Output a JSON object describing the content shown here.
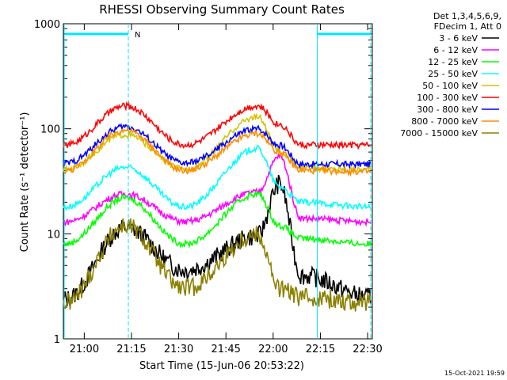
{
  "chart_data": {
    "type": "line",
    "title": "RHESSI Observing Summary Count Rates",
    "xlabel": "Start Time (15-Jun-06 20:53:22)",
    "ylabel": "Count Rate (s⁻¹ detector⁻¹)",
    "yscale": "log",
    "ylim": [
      1,
      1000
    ],
    "xlim": [
      "20:53:22",
      "22:31:30"
    ],
    "x_ticks": [
      "21:00",
      "21:15",
      "21:30",
      "21:45",
      "22:00",
      "22:15",
      "22:30"
    ],
    "y_ticks": [
      "1",
      "10",
      "100",
      "1000"
    ],
    "legend_header": [
      "Det 1,3,4,5,6,9,",
      "FDecim 1, Att 0"
    ],
    "legend_position": "right",
    "footer_date": "15-Oct-2021 19:59",
    "night_marker": "N",
    "x": [
      "20:54",
      "21:13",
      "21:32",
      "21:55",
      "22:02",
      "22:09",
      "22:31"
    ],
    "series": [
      {
        "name": "3 - 6 keV",
        "color": "#000000",
        "values": [
          2.4,
          11.5,
          4.5,
          9.5,
          30,
          4,
          2.5
        ]
      },
      {
        "name": "6 - 12 keV",
        "color": "#ff00ff",
        "values": [
          13,
          24,
          13,
          25,
          55,
          14,
          13
        ]
      },
      {
        "name": "12 - 25 keV",
        "color": "#00ff00",
        "values": [
          8,
          22,
          8,
          24,
          12,
          9,
          8
        ]
      },
      {
        "name": "25 - 50 keV",
        "color": "#00ffff",
        "values": [
          18,
          43,
          18,
          65,
          28,
          20,
          18
        ]
      },
      {
        "name": "50 - 100 keV",
        "color": "#d4c400",
        "values": [
          41,
          88,
          41,
          130,
          60,
          42,
          41
        ]
      },
      {
        "name": "100 - 300 keV",
        "color": "#ff0000",
        "values": [
          70,
          165,
          70,
          165,
          110,
          70,
          70
        ]
      },
      {
        "name": "300 - 800 keV",
        "color": "#0000ff",
        "values": [
          47,
          105,
          47,
          100,
          70,
          46,
          46
        ]
      },
      {
        "name": "800 - 7000 keV",
        "color": "#ff8c00",
        "values": [
          40,
          97,
          40,
          90,
          60,
          40,
          39
        ]
      },
      {
        "name": "7000 - 15000 keV",
        "color": "#8b8000",
        "values": [
          2.2,
          12,
          3,
          10,
          3,
          2.5,
          2.2
        ]
      }
    ],
    "night_times": [
      "21:14",
      "22:14",
      "22:31"
    ],
    "night_level": 800,
    "night_segments": [
      [
        "20:54",
        "21:14"
      ],
      [
        "22:14",
        "22:31"
      ]
    ]
  }
}
